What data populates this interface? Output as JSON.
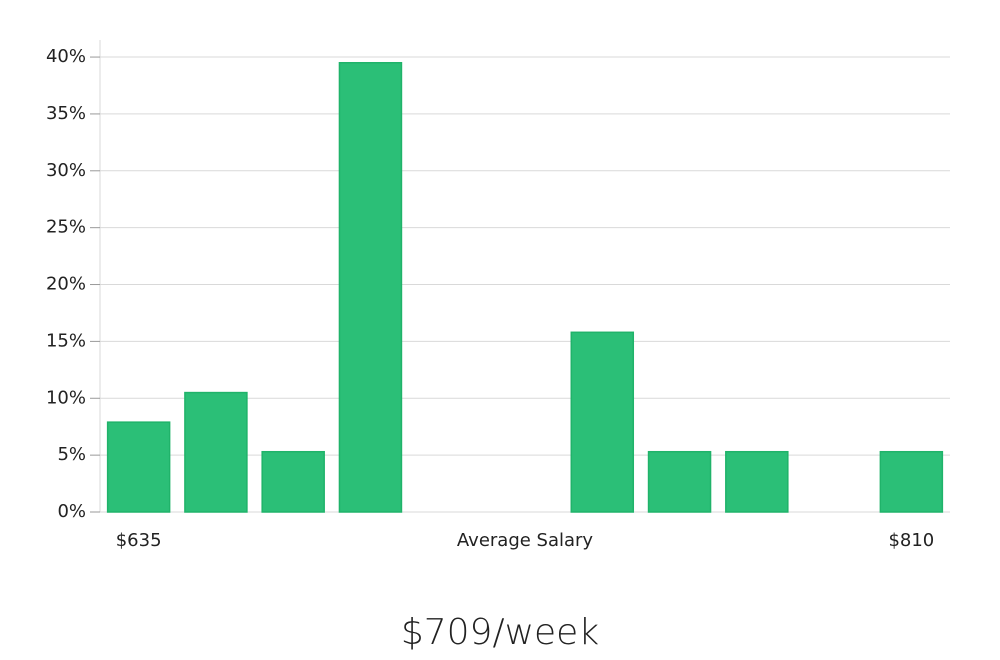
{
  "chart_data": {
    "type": "bar",
    "categories": [
      "$635",
      null,
      null,
      null,
      null,
      "Average Salary",
      null,
      null,
      null,
      null,
      "$810"
    ],
    "values": [
      7.9,
      10.5,
      5.3,
      39.5,
      0,
      0,
      15.8,
      5.3,
      5.3,
      0,
      5.3
    ],
    "color": "#2bbf77",
    "ylim": [
      0,
      41.5
    ],
    "yticks": [
      {
        "value": 0,
        "label": "0%"
      },
      {
        "value": 5,
        "label": "5%"
      },
      {
        "value": 10,
        "label": "10%"
      },
      {
        "value": 15,
        "label": "15%"
      },
      {
        "value": 20,
        "label": "20%"
      },
      {
        "value": 25,
        "label": "25%"
      },
      {
        "value": 30,
        "label": "30%"
      },
      {
        "value": 35,
        "label": "35%"
      },
      {
        "value": 40,
        "label": "40%"
      }
    ],
    "grid": true,
    "caption": "$709/week"
  }
}
